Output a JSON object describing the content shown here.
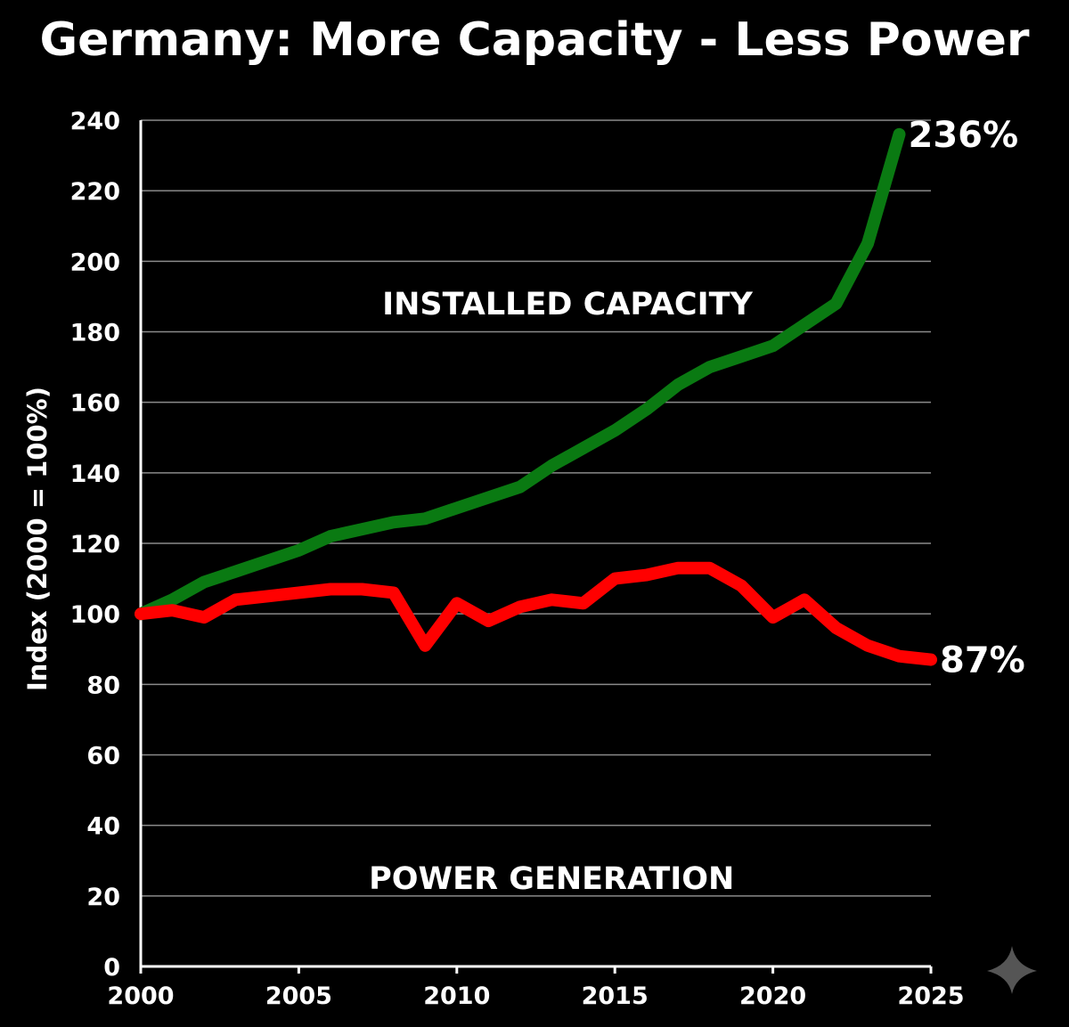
{
  "chart_data": {
    "type": "line",
    "title": "Germany: More Capacity - Less Power",
    "ylabel": "Index (2000 = 100%)",
    "xlabel": "",
    "xlim": [
      2000,
      2025
    ],
    "ylim": [
      0,
      240
    ],
    "x_ticks": [
      2000,
      2005,
      2010,
      2015,
      2020,
      2025
    ],
    "y_ticks": [
      0,
      20,
      40,
      60,
      80,
      100,
      120,
      140,
      160,
      180,
      200,
      220,
      240
    ],
    "grid": "horizontal",
    "series": [
      {
        "name": "INSTALLED CAPACITY",
        "color": "#0a7a12",
        "end_label": "236%",
        "points": [
          [
            2000,
            100
          ],
          [
            2001,
            104
          ],
          [
            2002,
            109
          ],
          [
            2003,
            112
          ],
          [
            2004,
            115
          ],
          [
            2005,
            118
          ],
          [
            2006,
            122
          ],
          [
            2007,
            124
          ],
          [
            2008,
            126
          ],
          [
            2009,
            127
          ],
          [
            2010,
            130
          ],
          [
            2011,
            133
          ],
          [
            2012,
            136
          ],
          [
            2013,
            142
          ],
          [
            2014,
            147
          ],
          [
            2015,
            152
          ],
          [
            2016,
            158
          ],
          [
            2017,
            165
          ],
          [
            2018,
            170
          ],
          [
            2019,
            173
          ],
          [
            2020,
            176
          ],
          [
            2021,
            182
          ],
          [
            2022,
            188
          ],
          [
            2023,
            205
          ],
          [
            2024,
            236
          ]
        ]
      },
      {
        "name": "POWER GENERATION",
        "color": "#ff0000",
        "end_label": "87%",
        "points": [
          [
            2000,
            100
          ],
          [
            2001,
            101
          ],
          [
            2002,
            99
          ],
          [
            2003,
            104
          ],
          [
            2004,
            105
          ],
          [
            2005,
            106
          ],
          [
            2006,
            107
          ],
          [
            2007,
            107
          ],
          [
            2008,
            106
          ],
          [
            2009,
            91
          ],
          [
            2010,
            103
          ],
          [
            2011,
            98
          ],
          [
            2012,
            102
          ],
          [
            2013,
            104
          ],
          [
            2014,
            103
          ],
          [
            2015,
            110
          ],
          [
            2016,
            111
          ],
          [
            2017,
            113
          ],
          [
            2018,
            113
          ],
          [
            2019,
            108
          ],
          [
            2020,
            99
          ],
          [
            2021,
            104
          ],
          [
            2022,
            96
          ],
          [
            2023,
            91
          ],
          [
            2024,
            88
          ],
          [
            2025,
            87
          ]
        ]
      }
    ],
    "colors": {
      "background": "#000000",
      "text": "#ffffff",
      "grid": "#8a8a8a",
      "axis": "#ffffff"
    }
  },
  "decoration": {
    "watermark_icon": "sparkle-icon"
  }
}
